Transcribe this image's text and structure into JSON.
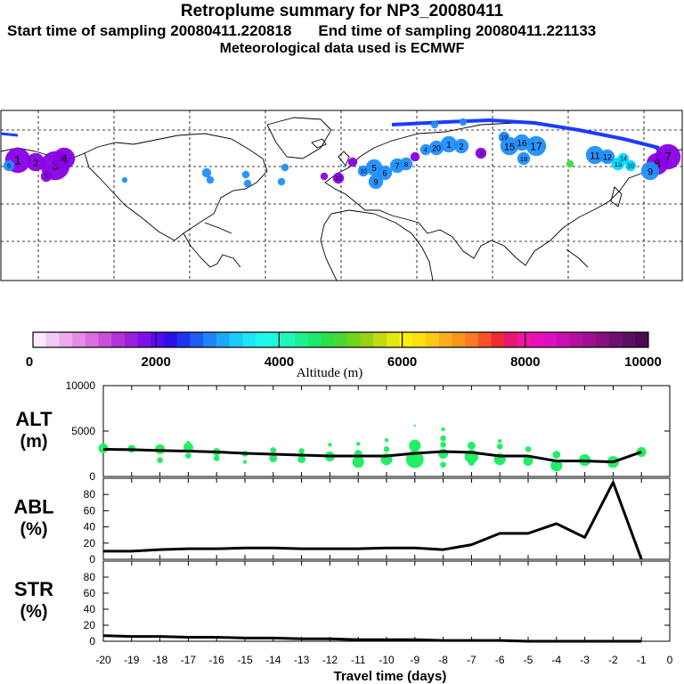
{
  "header": {
    "title": "Retroplume summary for NP3_20080411",
    "start_label": "Start time of sampling 20080411.220818",
    "end_label": "End time of sampling 20080411.221133",
    "met_label": "Meteorological data used is ECMWF"
  },
  "map": {
    "description_markers": [
      "1",
      "2",
      "3",
      "4",
      "5",
      "6",
      "7",
      "8",
      "9",
      "10",
      "11",
      "12",
      "13",
      "14",
      "15",
      "16",
      "17",
      "18",
      "19",
      "20"
    ],
    "colors": {
      "track": "#1a3cff",
      "low": "#8a00e6",
      "mid": "#1f8fff",
      "high": "#00d9ff"
    }
  },
  "colorbar": {
    "ticks": [
      "0",
      "2000",
      "4000",
      "6000",
      "8000",
      "10000"
    ],
    "label": "Altitude (m)",
    "colors": [
      "#fbe6fb",
      "#f5c8f5",
      "#eeaaee",
      "#e58ce8",
      "#d86ee0",
      "#c850d8",
      "#b432d8",
      "#9a1ee0",
      "#7c10e8",
      "#5a08f0",
      "#2c10e6",
      "#1e34f0",
      "#1e5cf4",
      "#1e84f6",
      "#1ea8f8",
      "#1ecaf8",
      "#1ee4f6",
      "#1ef6ee",
      "#1efadc",
      "#1ef8b8",
      "#1ef090",
      "#1ee86c",
      "#2ae04a",
      "#4ad830",
      "#70d41e",
      "#98d214",
      "#c0dc10",
      "#e4e80c",
      "#f8f00c",
      "#fce010",
      "#fcc818",
      "#fcae1c",
      "#fc9420",
      "#fc7a24",
      "#fc5028",
      "#f02a34",
      "#e61870",
      "#f016a0",
      "#ea10b8",
      "#dc10c0",
      "#c810b0",
      "#b410a0",
      "#9e1090",
      "#861080",
      "#6e1070",
      "#5a1060",
      "#4a0c50"
    ]
  },
  "chart_data": [
    {
      "type": "scatter+line",
      "panel": "ALT",
      "ylabel_top": "ALT",
      "ylabel_bottom": "(m)",
      "ylim": [
        0,
        10000
      ],
      "yticks": [
        "0",
        "5000",
        "10000"
      ],
      "x": [
        -20,
        -19,
        -18,
        -17,
        -16,
        -15,
        -14,
        -13,
        -12,
        -11,
        -10,
        -9,
        -8,
        -7,
        -6,
        -5,
        -4,
        -3,
        -2,
        -1
      ],
      "line_values": [
        3000,
        2950,
        2850,
        2800,
        2700,
        2550,
        2450,
        2350,
        2250,
        2250,
        2250,
        2550,
        2750,
        2650,
        2250,
        2250,
        1700,
        1700,
        1600,
        2700
      ],
      "scatter": [
        {
          "x": -20,
          "y": 3100,
          "s": 5
        },
        {
          "x": -19,
          "y": 3050,
          "s": 4
        },
        {
          "x": -18,
          "y": 3000,
          "s": 5
        },
        {
          "x": -18,
          "y": 1800,
          "s": 3
        },
        {
          "x": -17,
          "y": 3200,
          "s": 5
        },
        {
          "x": -17,
          "y": 2300,
          "s": 3
        },
        {
          "x": -17,
          "y": 3700,
          "s": 2
        },
        {
          "x": -16,
          "y": 2700,
          "s": 4
        },
        {
          "x": -16,
          "y": 2000,
          "s": 3
        },
        {
          "x": -15,
          "y": 2500,
          "s": 3
        },
        {
          "x": -15,
          "y": 1600,
          "s": 2
        },
        {
          "x": -14,
          "y": 2900,
          "s": 3
        },
        {
          "x": -14,
          "y": 2000,
          "s": 4
        },
        {
          "x": -13,
          "y": 2800,
          "s": 3
        },
        {
          "x": -13,
          "y": 1900,
          "s": 4
        },
        {
          "x": -12,
          "y": 2200,
          "s": 5
        },
        {
          "x": -12,
          "y": 3500,
          "s": 2
        },
        {
          "x": -11,
          "y": 1600,
          "s": 6
        },
        {
          "x": -11,
          "y": 2500,
          "s": 4
        },
        {
          "x": -11,
          "y": 3600,
          "s": 2
        },
        {
          "x": -10,
          "y": 1900,
          "s": 6
        },
        {
          "x": -10,
          "y": 4000,
          "s": 2
        },
        {
          "x": -10,
          "y": 3000,
          "s": 3
        },
        {
          "x": -9,
          "y": 1900,
          "s": 9
        },
        {
          "x": -9,
          "y": 3400,
          "s": 6
        },
        {
          "x": -9,
          "y": 5600,
          "s": 1
        },
        {
          "x": -8,
          "y": 2500,
          "s": 5
        },
        {
          "x": -8,
          "y": 4200,
          "s": 3
        },
        {
          "x": -8,
          "y": 1300,
          "s": 3
        },
        {
          "x": -8,
          "y": 5200,
          "s": 2
        },
        {
          "x": -8,
          "y": 3500,
          "s": 3
        },
        {
          "x": -7,
          "y": 2200,
          "s": 7
        },
        {
          "x": -7,
          "y": 3400,
          "s": 4
        },
        {
          "x": -7,
          "y": 1500,
          "s": 3
        },
        {
          "x": -6,
          "y": 1900,
          "s": 6
        },
        {
          "x": -6,
          "y": 3300,
          "s": 3
        },
        {
          "x": -6,
          "y": 3900,
          "s": 2
        },
        {
          "x": -5,
          "y": 1700,
          "s": 5
        },
        {
          "x": -5,
          "y": 3000,
          "s": 3
        },
        {
          "x": -4,
          "y": 1200,
          "s": 6
        },
        {
          "x": -4,
          "y": 2400,
          "s": 4
        },
        {
          "x": -3,
          "y": 1800,
          "s": 6
        },
        {
          "x": -2,
          "y": 1600,
          "s": 6
        },
        {
          "x": -1,
          "y": 2700,
          "s": 5
        }
      ],
      "scatter_color": "#22ee66"
    },
    {
      "type": "line",
      "panel": "ABL",
      "ylabel_top": "ABL",
      "ylabel_bottom": "(%)",
      "ylim": [
        0,
        100
      ],
      "yticks": [
        "0",
        "20",
        "40",
        "60",
        "80"
      ],
      "x": [
        -20,
        -19,
        -18,
        -17,
        -16,
        -15,
        -14,
        -13,
        -12,
        -11,
        -10,
        -9,
        -8,
        -7,
        -6,
        -5,
        -4,
        -3,
        -2,
        -1
      ],
      "values": [
        10,
        10,
        12,
        13,
        13,
        14,
        14,
        13,
        13,
        13,
        14,
        14,
        12,
        18,
        32,
        32,
        44,
        27,
        95,
        0
      ]
    },
    {
      "type": "line",
      "panel": "STR",
      "ylabel_top": "STR",
      "ylabel_bottom": "(%)",
      "ylim": [
        0,
        100
      ],
      "yticks": [
        "0",
        "20",
        "40",
        "60",
        "80"
      ],
      "x": [
        -20,
        -19,
        -18,
        -17,
        -16,
        -15,
        -14,
        -13,
        -12,
        -11,
        -10,
        -9,
        -8,
        -7,
        -6,
        -5,
        -4,
        -3,
        -2,
        -1
      ],
      "values": [
        7,
        6,
        6,
        5,
        5,
        4,
        4,
        3,
        3,
        2,
        2,
        2,
        1,
        1,
        1,
        0,
        0,
        0,
        0,
        0
      ]
    }
  ],
  "xaxis": {
    "ticks": [
      "-20",
      "-19",
      "-18",
      "-17",
      "-16",
      "-15",
      "-14",
      "-13",
      "-12",
      "-11",
      "-10",
      "-9",
      "-8",
      "-7",
      "-6",
      "-5",
      "-4",
      "-3",
      "-2",
      "-1",
      "0"
    ],
    "label": "Travel time (days)"
  }
}
